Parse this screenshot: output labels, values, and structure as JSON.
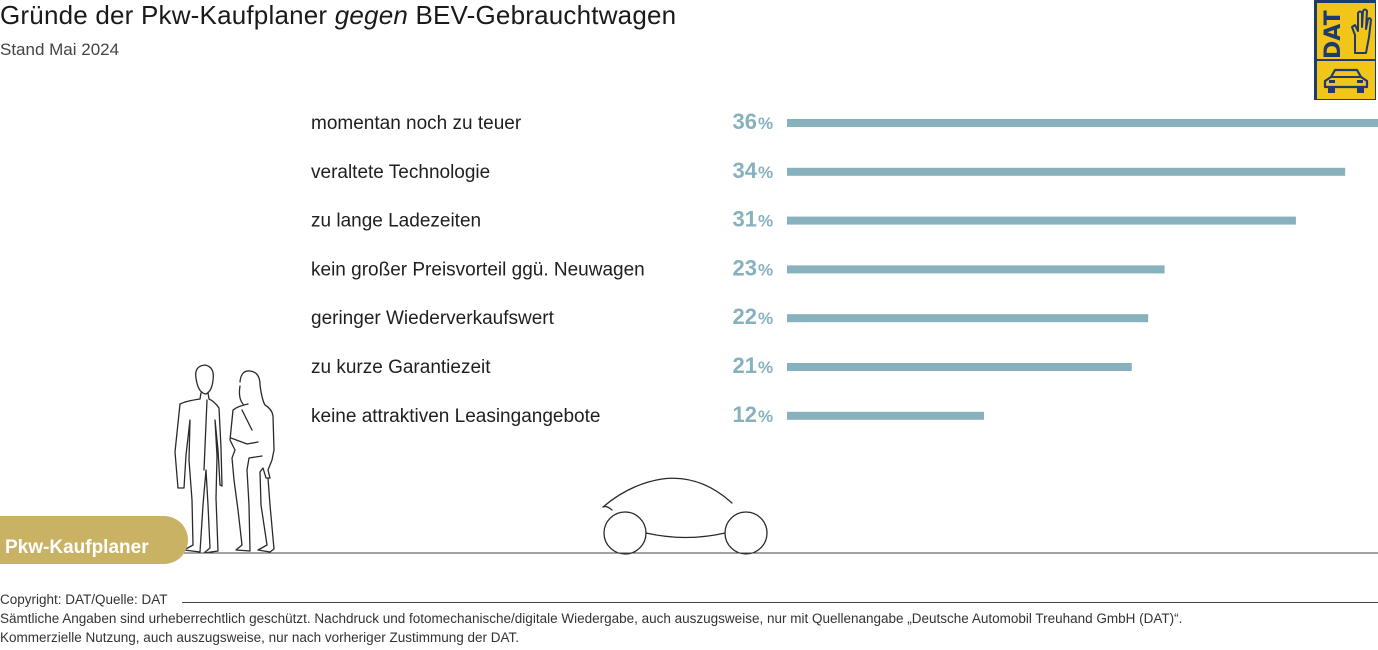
{
  "title": {
    "part1": "Gründe der Pkw-Kaufplaner ",
    "italic": "gegen",
    "part2": " BEV-Gebrauchtwagen"
  },
  "subtitle": "Stand Mai 2024",
  "logo": {
    "text": "DAT",
    "icon_top": "hand-icon",
    "icon_bottom": "car-icon",
    "colors": {
      "yellow": "#f2c519",
      "blue": "#1e3a6e"
    }
  },
  "badge": {
    "label": "Pkw-Kaufplaner",
    "color": "#c9b264"
  },
  "illustration": {
    "people": "two-people-icon",
    "car": "car-outline-icon"
  },
  "chart_data": {
    "type": "bar",
    "orientation": "horizontal",
    "categories": [
      "momentan noch zu teuer",
      "veraltete Technologie",
      "zu lange Ladezeiten",
      "kein großer Preisvorteil ggü. Neuwagen",
      "geringer Wiederverkaufswert",
      "zu kurze Garantiezeit",
      "keine attraktiven Leasingangebote"
    ],
    "values": [
      36,
      34,
      31,
      23,
      22,
      21,
      12
    ],
    "unit": "%",
    "bar_color": "#86b1bd",
    "grid": false,
    "legend": "none"
  },
  "footer": {
    "copyright": "Copyright: DAT/Quelle: DAT",
    "line1": "Sämtliche Angaben sind urheberrechtlich geschützt. Nachdruck und fotomechanische/digitale Wiedergabe, auch auszugsweise, nur mit Quellenangabe „Deutsche Automobil Treuhand GmbH (DAT)“.",
    "line2": "Kommerzielle Nutzung, auch auszugsweise, nur nach vorheriger Zustimmung der DAT."
  }
}
